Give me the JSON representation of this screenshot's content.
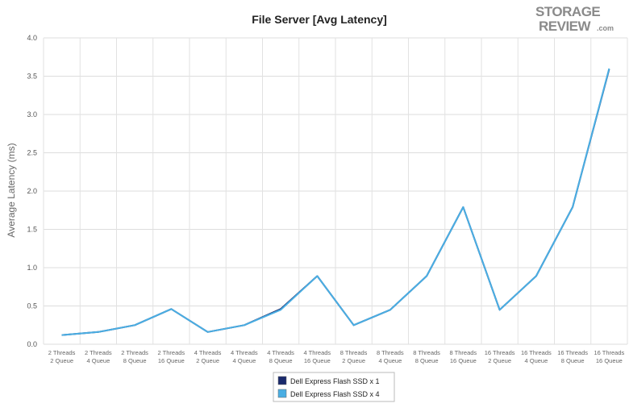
{
  "logo": {
    "line1": "STORAGE",
    "line2": "REVIEW",
    "suffix": ".com"
  },
  "chart_data": {
    "type": "line",
    "title": "File Server [Avg Latency]",
    "ylabel": "Average Latency (ms)",
    "xlabel": "",
    "ylim": [
      0,
      4.0
    ],
    "yticks": [
      "0.0",
      "0.5",
      "1.0",
      "1.5",
      "2.0",
      "2.5",
      "3.0",
      "3.5",
      "4.0"
    ],
    "grid": true,
    "legend_position": "bottom-center",
    "categories": [
      [
        "2 Threads",
        "2 Queue"
      ],
      [
        "2 Threads",
        "4 Queue"
      ],
      [
        "2 Threads",
        "8 Queue"
      ],
      [
        "2 Threads",
        "16 Queue"
      ],
      [
        "4 Threads",
        "2 Queue"
      ],
      [
        "4 Threads",
        "4 Queue"
      ],
      [
        "4 Threads",
        "8 Queue"
      ],
      [
        "4 Threads",
        "16 Queue"
      ],
      [
        "8 Threads",
        "2 Queue"
      ],
      [
        "8 Threads",
        "4 Queue"
      ],
      [
        "8 Threads",
        "8 Queue"
      ],
      [
        "8 Threads",
        "16 Queue"
      ],
      [
        "16 Threads",
        "2 Queue"
      ],
      [
        "16 Threads",
        "4 Queue"
      ],
      [
        "16 Threads",
        "8 Queue"
      ],
      [
        "16 Threads",
        "16 Queue"
      ]
    ],
    "series": [
      {
        "name": "Dell Express Flash SSD x 1",
        "color": "#1a2a6c",
        "values": [
          0.12,
          0.16,
          0.25,
          0.46,
          0.16,
          0.25,
          0.46,
          0.89,
          0.25,
          0.45,
          0.89,
          1.79,
          0.45,
          0.89,
          1.79,
          3.59
        ]
      },
      {
        "name": "Dell Express Flash SSD x 4",
        "color": "#4aaee3",
        "values": [
          0.12,
          0.16,
          0.25,
          0.46,
          0.16,
          0.25,
          0.45,
          0.89,
          0.25,
          0.45,
          0.89,
          1.79,
          0.45,
          0.89,
          1.79,
          3.6
        ]
      }
    ]
  }
}
